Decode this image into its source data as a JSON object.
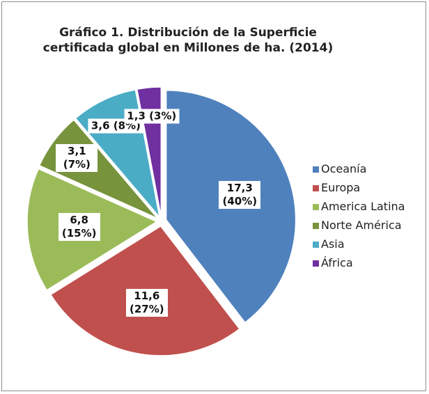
{
  "chart_data": {
    "type": "pie",
    "title": "Gráfico 1. Distribución de la Superficie certificada global en Millones de ha. (2014)",
    "categories": [
      "Oceanía",
      "Europa",
      "America Latina",
      "Norte América",
      "Asia",
      "África"
    ],
    "values": [
      17.3,
      11.6,
      6.8,
      3.1,
      3.6,
      1.3
    ],
    "value_labels": [
      "17,3 (40%)",
      "11,6 (27%)",
      "6,8 (15%)",
      "3,1 (7%)",
      "3,6 (8%)",
      "1,3 (3%)"
    ],
    "colors": [
      "#4f81bd",
      "#c0504d",
      "#9bbb59",
      "#77933c",
      "#4bacc6",
      "#7030a0"
    ],
    "legend": "right"
  }
}
